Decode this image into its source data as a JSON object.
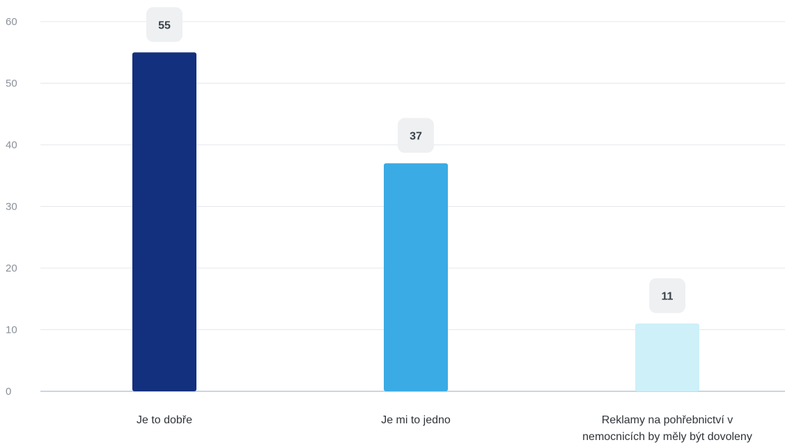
{
  "chart_data": {
    "type": "bar",
    "categories": [
      [
        "Je to dobře"
      ],
      [
        "Je mi to jedno"
      ],
      [
        "Reklamy na pohřebnictví v",
        "nemocnicích by měly být dovoleny"
      ]
    ],
    "values": [
      55,
      37,
      11
    ],
    "data_labels": [
      "55",
      "37",
      "11"
    ],
    "colors": [
      "#13307e",
      "#3aabe4",
      "#cdf0f9"
    ],
    "ylim": [
      0,
      60
    ],
    "yticks": [
      "0",
      "10",
      "20",
      "30",
      "40",
      "50",
      "60"
    ],
    "grid": true,
    "legend": "none",
    "title": "",
    "xlabel": "",
    "ylabel": ""
  }
}
